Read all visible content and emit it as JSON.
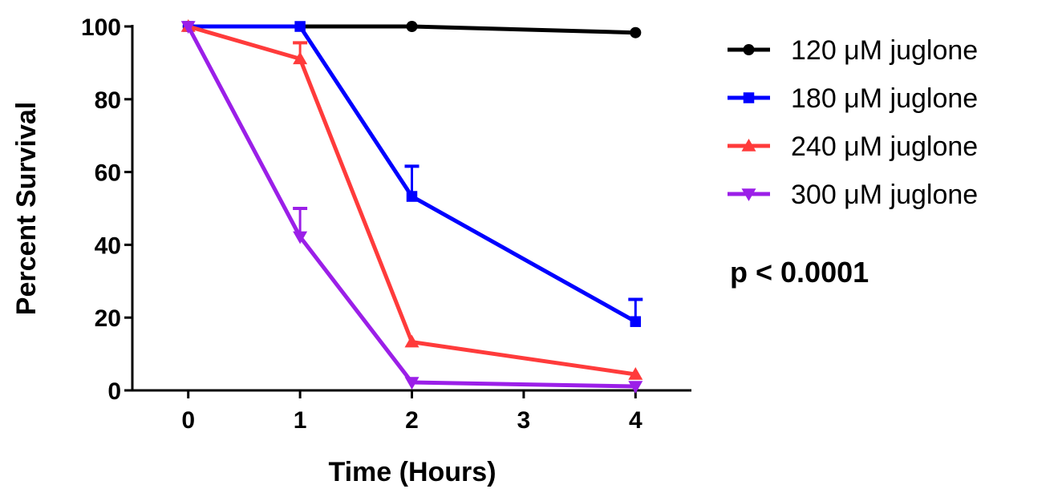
{
  "chart_data": {
    "type": "line",
    "title": "",
    "xlabel": "Time (Hours)",
    "ylabel": "Percent Survival",
    "x": [
      0,
      1,
      2,
      3,
      4
    ],
    "x_ticks": [
      "0",
      "1",
      "2",
      "3",
      "4"
    ],
    "y_ticks": [
      "0",
      "20",
      "40",
      "60",
      "80",
      "100"
    ],
    "xlim": [
      -0.5,
      4.5
    ],
    "ylim": [
      0,
      100
    ],
    "grid": false,
    "legend_position": "right",
    "annotation": "p < 0.0001",
    "series": [
      {
        "name": "120 μM juglone",
        "color": "#000000",
        "marker": "circle",
        "x": [
          0,
          2,
          4
        ],
        "values": [
          100,
          100,
          98.3
        ],
        "error_upper": [
          0,
          0,
          0
        ]
      },
      {
        "name": "180 μM juglone",
        "color": "#0000ff",
        "marker": "square",
        "x": [
          0,
          1,
          2,
          4
        ],
        "values": [
          100,
          100,
          53.3,
          18.9
        ],
        "error_upper": [
          0,
          0,
          8.3,
          6.1
        ]
      },
      {
        "name": "240 μM juglone",
        "color": "#ff3b3b",
        "marker": "triangle-up",
        "x": [
          0,
          1,
          2,
          4
        ],
        "values": [
          100,
          91.1,
          13.3,
          4.4
        ],
        "error_upper": [
          0,
          4.4,
          0,
          0
        ]
      },
      {
        "name": "300 μM juglone",
        "color": "#9b1fe8",
        "marker": "triangle-down",
        "x": [
          0,
          1,
          2,
          4
        ],
        "values": [
          100,
          42.2,
          2.2,
          1.1
        ],
        "error_upper": [
          0,
          7.8,
          0,
          0
        ]
      }
    ]
  }
}
